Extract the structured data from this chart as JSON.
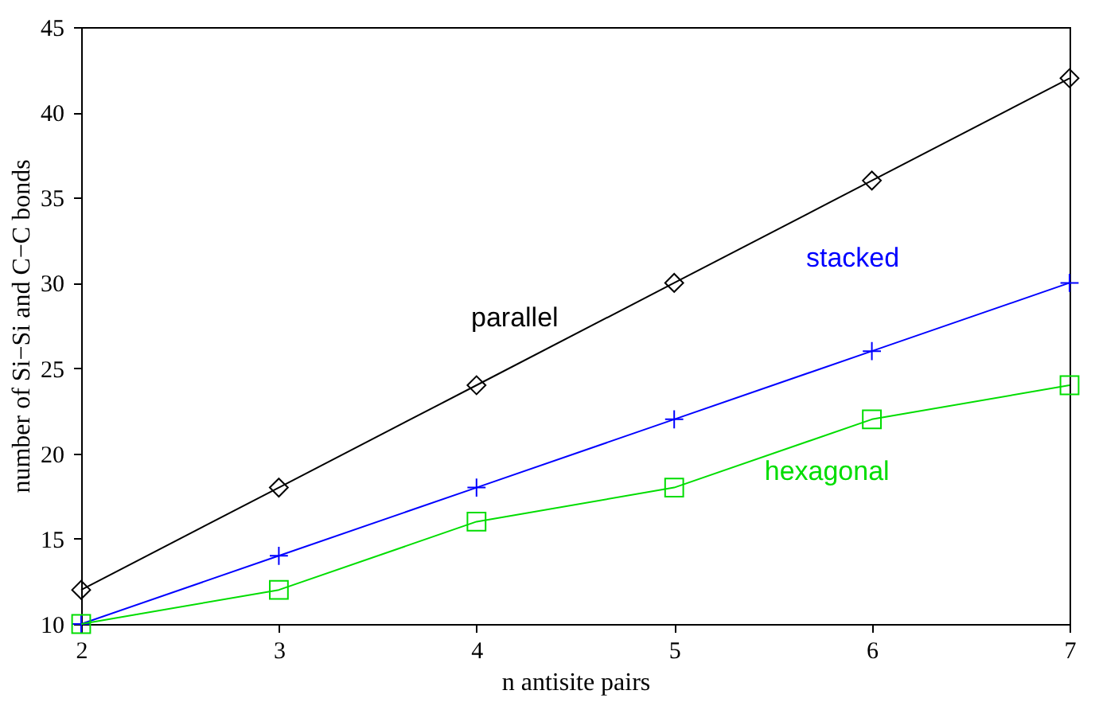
{
  "chart_data": {
    "type": "line",
    "x": [
      2,
      3,
      4,
      5,
      6,
      7
    ],
    "xlabel": "n antisite pairs",
    "ylabel": "number of Si−Si and C−C bonds",
    "xlim": [
      2,
      7
    ],
    "xticks": [
      2,
      3,
      4,
      5,
      6,
      7
    ],
    "ylim": [
      10,
      45
    ],
    "yticks": [
      10,
      15,
      20,
      25,
      30,
      35,
      40,
      45
    ],
    "grid": false,
    "line_style": "solid",
    "series": [
      {
        "name": "parallel",
        "color": "#000000",
        "marker": "diamond",
        "values": [
          12,
          18,
          24,
          30,
          36,
          42
        ]
      },
      {
        "name": "stacked",
        "color": "#0000ff",
        "marker": "cross",
        "values": [
          10,
          14,
          18,
          22,
          26,
          30
        ]
      },
      {
        "name": "hexagonal",
        "color": "#00dd00",
        "marker": "square",
        "values": [
          10,
          12,
          16,
          18,
          22,
          24
        ]
      }
    ]
  }
}
